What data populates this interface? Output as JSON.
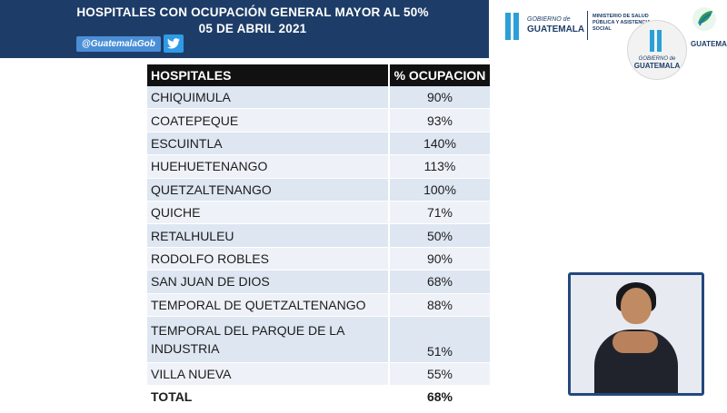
{
  "header": {
    "title_line1": "HOSPITALES CON OCUPACIÓN GENERAL MAYOR AL 50%",
    "title_line2": "05 DE ABRIL 2021",
    "social_handle": "@GuatemalaGob",
    "social_icon": "twitter-icon",
    "banner_color": "#1d3d68"
  },
  "logos": {
    "gob_small": "GOBIERNO de",
    "gob_big": "GUATEMALA",
    "ministry": "MINISTERIO DE SALUD PÚBLICA Y ASISTENCIA SOCIAL",
    "circle_small": "GOBIERNO de",
    "circle_big": "GUATEMALA",
    "right_partial": "GUATEMALA"
  },
  "table": {
    "headers": [
      "HOSPITALES",
      "% OCUPACION"
    ],
    "rows": [
      {
        "hospital": "CHIQUIMULA",
        "pct": "90%"
      },
      {
        "hospital": "COATEPEQUE",
        "pct": "93%"
      },
      {
        "hospital": "ESCUINTLA",
        "pct": "140%"
      },
      {
        "hospital": "HUEHUETENANGO",
        "pct": "113%"
      },
      {
        "hospital": "QUETZALTENANGO",
        "pct": "100%"
      },
      {
        "hospital": "QUICHE",
        "pct": "71%"
      },
      {
        "hospital": "RETALHULEU",
        "pct": "50%"
      },
      {
        "hospital": "RODOLFO ROBLES",
        "pct": "90%"
      },
      {
        "hospital": "SAN JUAN DE DIOS",
        "pct": "68%"
      },
      {
        "hospital": "TEMPORAL DE QUETZALTENANGO",
        "pct": "88%"
      },
      {
        "hospital": "TEMPORAL DEL PARQUE DE LA INDUSTRIA",
        "pct": "51%"
      },
      {
        "hospital": "VILLA NUEVA",
        "pct": "55%"
      }
    ],
    "total": {
      "label": "TOTAL",
      "pct": "68%"
    }
  },
  "video": {
    "subject": "sign-language-interpreter",
    "frame_color": "#23487d"
  }
}
